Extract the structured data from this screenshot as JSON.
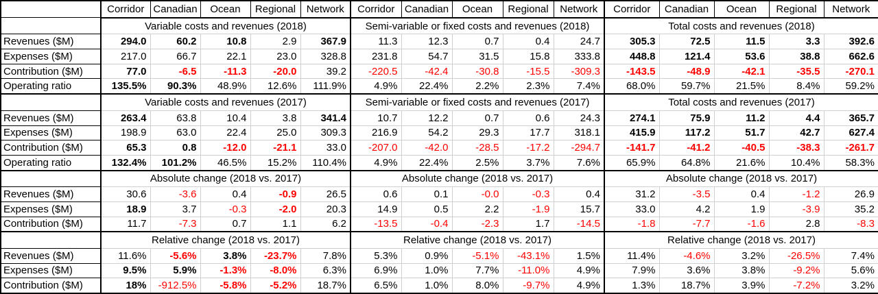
{
  "columns": [
    "Corridor",
    "Canadian",
    "Ocean",
    "Regional",
    "Network"
  ],
  "colors": {
    "negative": "#ff0000",
    "text": "#000000",
    "gridline": "#cfcfcf",
    "border": "#000000",
    "background": "#ffffff"
  },
  "bands": [
    {
      "row_labels": [
        "Revenues ($M)",
        "Expenses ($M)",
        "Contribution ($M)",
        "Operating ratio"
      ],
      "groups": [
        {
          "title": "Variable costs and revenues (2018)",
          "rows": [
            [
              [
                "294.0",
                "b"
              ],
              [
                "60.2",
                "b"
              ],
              [
                "10.8",
                "b"
              ],
              [
                "2.9",
                "n"
              ],
              [
                "367.9",
                "b"
              ]
            ],
            [
              [
                "217.0",
                "n"
              ],
              [
                "66.7",
                "n"
              ],
              [
                "22.1",
                "n"
              ],
              [
                "23.0",
                "n"
              ],
              [
                "328.8",
                "n"
              ]
            ],
            [
              [
                "77.0",
                "b"
              ],
              [
                "-6.5",
                "br"
              ],
              [
                "-11.3",
                "br"
              ],
              [
                "-20.0",
                "br"
              ],
              [
                "39.2",
                "n"
              ]
            ],
            [
              [
                "135.5%",
                "b"
              ],
              [
                "90.3%",
                "b"
              ],
              [
                "48.9%",
                "n"
              ],
              [
                "12.6%",
                "n"
              ],
              [
                "111.9%",
                "n"
              ]
            ]
          ]
        },
        {
          "title": "Semi-variable or fixed costs and revenues (2018)",
          "rows": [
            [
              [
                "11.3",
                "n"
              ],
              [
                "12.3",
                "n"
              ],
              [
                "0.7",
                "n"
              ],
              [
                "0.4",
                "n"
              ],
              [
                "24.7",
                "n"
              ]
            ],
            [
              [
                "231.8",
                "n"
              ],
              [
                "54.7",
                "n"
              ],
              [
                "31.5",
                "n"
              ],
              [
                "15.8",
                "n"
              ],
              [
                "333.8",
                "n"
              ]
            ],
            [
              [
                "-220.5",
                "r"
              ],
              [
                "-42.4",
                "r"
              ],
              [
                "-30.8",
                "r"
              ],
              [
                "-15.5",
                "r"
              ],
              [
                "-309.3",
                "r"
              ]
            ],
            [
              [
                "4.9%",
                "n"
              ],
              [
                "22.4%",
                "n"
              ],
              [
                "2.2%",
                "n"
              ],
              [
                "2.3%",
                "n"
              ],
              [
                "7.4%",
                "n"
              ]
            ]
          ]
        },
        {
          "title": "Total costs and revenues (2018)",
          "rows": [
            [
              [
                "305.3",
                "b"
              ],
              [
                "72.5",
                "b"
              ],
              [
                "11.5",
                "b"
              ],
              [
                "3.3",
                "b"
              ],
              [
                "392.6",
                "b"
              ]
            ],
            [
              [
                "448.8",
                "b"
              ],
              [
                "121.4",
                "b"
              ],
              [
                "53.6",
                "b"
              ],
              [
                "38.8",
                "b"
              ],
              [
                "662.6",
                "b"
              ]
            ],
            [
              [
                "-143.5",
                "br"
              ],
              [
                "-48.9",
                "br"
              ],
              [
                "-42.1",
                "br"
              ],
              [
                "-35.5",
                "br"
              ],
              [
                "-270.1",
                "br"
              ]
            ],
            [
              [
                "68.0%",
                "n"
              ],
              [
                "59.7%",
                "n"
              ],
              [
                "21.5%",
                "n"
              ],
              [
                "8.4%",
                "n"
              ],
              [
                "59.2%",
                "n"
              ]
            ]
          ]
        }
      ]
    },
    {
      "row_labels": [
        "Revenues ($M)",
        "Expenses ($M)",
        "Contribution ($M)",
        "Operating ratio"
      ],
      "groups": [
        {
          "title": "Variable costs and revenues (2017)",
          "rows": [
            [
              [
                "263.4",
                "b"
              ],
              [
                "63.8",
                "n"
              ],
              [
                "10.4",
                "n"
              ],
              [
                "3.8",
                "n"
              ],
              [
                "341.4",
                "b"
              ]
            ],
            [
              [
                "198.9",
                "n"
              ],
              [
                "63.0",
                "n"
              ],
              [
                "22.4",
                "n"
              ],
              [
                "25.0",
                "n"
              ],
              [
                "309.3",
                "n"
              ]
            ],
            [
              [
                "65.3",
                "b"
              ],
              [
                "0.8",
                "b"
              ],
              [
                "-12.0",
                "br"
              ],
              [
                "-21.1",
                "br"
              ],
              [
                "33.0",
                "n"
              ]
            ],
            [
              [
                "132.4%",
                "b"
              ],
              [
                "101.2%",
                "b"
              ],
              [
                "46.5%",
                "n"
              ],
              [
                "15.2%",
                "n"
              ],
              [
                "110.4%",
                "n"
              ]
            ]
          ]
        },
        {
          "title": "Semi-variable or fixed costs and revenues (2017)",
          "rows": [
            [
              [
                "10.7",
                "n"
              ],
              [
                "12.2",
                "n"
              ],
              [
                "0.7",
                "n"
              ],
              [
                "0.6",
                "n"
              ],
              [
                "24.3",
                "n"
              ]
            ],
            [
              [
                "216.9",
                "n"
              ],
              [
                "54.2",
                "n"
              ],
              [
                "29.3",
                "n"
              ],
              [
                "17.7",
                "n"
              ],
              [
                "318.1",
                "n"
              ]
            ],
            [
              [
                "-207.0",
                "r"
              ],
              [
                "-42.0",
                "r"
              ],
              [
                "-28.5",
                "r"
              ],
              [
                "-17.2",
                "r"
              ],
              [
                "-294.7",
                "r"
              ]
            ],
            [
              [
                "4.9%",
                "n"
              ],
              [
                "22.4%",
                "n"
              ],
              [
                "2.5%",
                "n"
              ],
              [
                "3.7%",
                "n"
              ],
              [
                "7.6%",
                "n"
              ]
            ]
          ]
        },
        {
          "title": "Total costs and revenues (2017)",
          "rows": [
            [
              [
                "274.1",
                "b"
              ],
              [
                "75.9",
                "b"
              ],
              [
                "11.2",
                "b"
              ],
              [
                "4.4",
                "b"
              ],
              [
                "365.7",
                "b"
              ]
            ],
            [
              [
                "415.9",
                "b"
              ],
              [
                "117.2",
                "b"
              ],
              [
                "51.7",
                "b"
              ],
              [
                "42.7",
                "b"
              ],
              [
                "627.4",
                "b"
              ]
            ],
            [
              [
                "-141.7",
                "br"
              ],
              [
                "-41.2",
                "br"
              ],
              [
                "-40.5",
                "br"
              ],
              [
                "-38.3",
                "br"
              ],
              [
                "-261.7",
                "br"
              ]
            ],
            [
              [
                "65.9%",
                "n"
              ],
              [
                "64.8%",
                "n"
              ],
              [
                "21.6%",
                "n"
              ],
              [
                "10.4%",
                "n"
              ],
              [
                "58.3%",
                "n"
              ]
            ]
          ]
        }
      ]
    },
    {
      "row_labels": [
        "Revenues ($M)",
        "Expenses ($M)",
        "Contribution ($M)"
      ],
      "groups": [
        {
          "title": "Absolute change (2018 vs. 2017)",
          "rows": [
            [
              [
                "30.6",
                "n"
              ],
              [
                "-3.6",
                "r"
              ],
              [
                "0.4",
                "n"
              ],
              [
                "-0.9",
                "br"
              ],
              [
                "26.5",
                "n"
              ]
            ],
            [
              [
                "18.9",
                "b"
              ],
              [
                "3.7",
                "n"
              ],
              [
                "-0.3",
                "r"
              ],
              [
                "-2.0",
                "br"
              ],
              [
                "20.3",
                "n"
              ]
            ],
            [
              [
                "11.7",
                "n"
              ],
              [
                "-7.3",
                "r"
              ],
              [
                "0.7",
                "n"
              ],
              [
                "1.1",
                "n"
              ],
              [
                "6.2",
                "n"
              ]
            ]
          ]
        },
        {
          "title": "Absolute change (2018 vs. 2017)",
          "rows": [
            [
              [
                "0.6",
                "n"
              ],
              [
                "0.1",
                "n"
              ],
              [
                "-0.0",
                "r"
              ],
              [
                "-0.3",
                "r"
              ],
              [
                "0.4",
                "n"
              ]
            ],
            [
              [
                "14.9",
                "n"
              ],
              [
                "0.5",
                "n"
              ],
              [
                "2.2",
                "n"
              ],
              [
                "-1.9",
                "r"
              ],
              [
                "15.7",
                "n"
              ]
            ],
            [
              [
                "-13.5",
                "r"
              ],
              [
                "-0.4",
                "r"
              ],
              [
                "-2.3",
                "r"
              ],
              [
                "1.7",
                "n"
              ],
              [
                "-14.5",
                "r"
              ]
            ]
          ]
        },
        {
          "title": "Absolute change (2018 vs. 2017)",
          "rows": [
            [
              [
                "31.2",
                "n"
              ],
              [
                "-3.5",
                "r"
              ],
              [
                "0.4",
                "n"
              ],
              [
                "-1.2",
                "r"
              ],
              [
                "26.9",
                "n"
              ]
            ],
            [
              [
                "33.0",
                "n"
              ],
              [
                "4.2",
                "n"
              ],
              [
                "1.9",
                "n"
              ],
              [
                "-3.9",
                "r"
              ],
              [
                "35.2",
                "n"
              ]
            ],
            [
              [
                "-1.8",
                "r"
              ],
              [
                "-7.7",
                "r"
              ],
              [
                "-1.6",
                "r"
              ],
              [
                "2.8",
                "n"
              ],
              [
                "-8.3",
                "r"
              ]
            ]
          ]
        }
      ]
    },
    {
      "row_labels": [
        "Revenues ($M)",
        "Expenses ($M)",
        "Contribution ($M)"
      ],
      "groups": [
        {
          "title": "Relative change (2018 vs. 2017)",
          "rows": [
            [
              [
                "11.6%",
                "n"
              ],
              [
                "-5.6%",
                "br"
              ],
              [
                "3.8%",
                "b"
              ],
              [
                "-23.7%",
                "br"
              ],
              [
                "7.8%",
                "n"
              ]
            ],
            [
              [
                "9.5%",
                "b"
              ],
              [
                "5.9%",
                "b"
              ],
              [
                "-1.3%",
                "br"
              ],
              [
                "-8.0%",
                "br"
              ],
              [
                "6.3%",
                "n"
              ]
            ],
            [
              [
                "18%",
                "b"
              ],
              [
                "-912.5%",
                "r"
              ],
              [
                "-5.8%",
                "br"
              ],
              [
                "-5.2%",
                "br"
              ],
              [
                "18.7%",
                "n"
              ]
            ]
          ]
        },
        {
          "title": "Relative change (2018 vs. 2017)",
          "rows": [
            [
              [
                "5.3%",
                "n"
              ],
              [
                "0.9%",
                "n"
              ],
              [
                "-5.1%",
                "r"
              ],
              [
                "-43.1%",
                "r"
              ],
              [
                "1.5%",
                "n"
              ]
            ],
            [
              [
                "6.9%",
                "n"
              ],
              [
                "1.0%",
                "n"
              ],
              [
                "7.7%",
                "n"
              ],
              [
                "-11.0%",
                "r"
              ],
              [
                "4.9%",
                "n"
              ]
            ],
            [
              [
                "6.5%",
                "n"
              ],
              [
                "1.0%",
                "n"
              ],
              [
                "8.0%",
                "n"
              ],
              [
                "-9.7%",
                "r"
              ],
              [
                "4.9%",
                "n"
              ]
            ]
          ]
        },
        {
          "title": "Relative change (2018 vs. 2017)",
          "rows": [
            [
              [
                "11.4%",
                "n"
              ],
              [
                "-4.6%",
                "r"
              ],
              [
                "3.2%",
                "n"
              ],
              [
                "-26.5%",
                "r"
              ],
              [
                "7.4%",
                "n"
              ]
            ],
            [
              [
                "7.9%",
                "n"
              ],
              [
                "3.6%",
                "n"
              ],
              [
                "3.8%",
                "n"
              ],
              [
                "-9.2%",
                "r"
              ],
              [
                "5.6%",
                "n"
              ]
            ],
            [
              [
                "1.3%",
                "n"
              ],
              [
                "18.7%",
                "n"
              ],
              [
                "3.9%",
                "n"
              ],
              [
                "-7.2%",
                "r"
              ],
              [
                "3.2%",
                "n"
              ]
            ]
          ]
        }
      ]
    }
  ]
}
